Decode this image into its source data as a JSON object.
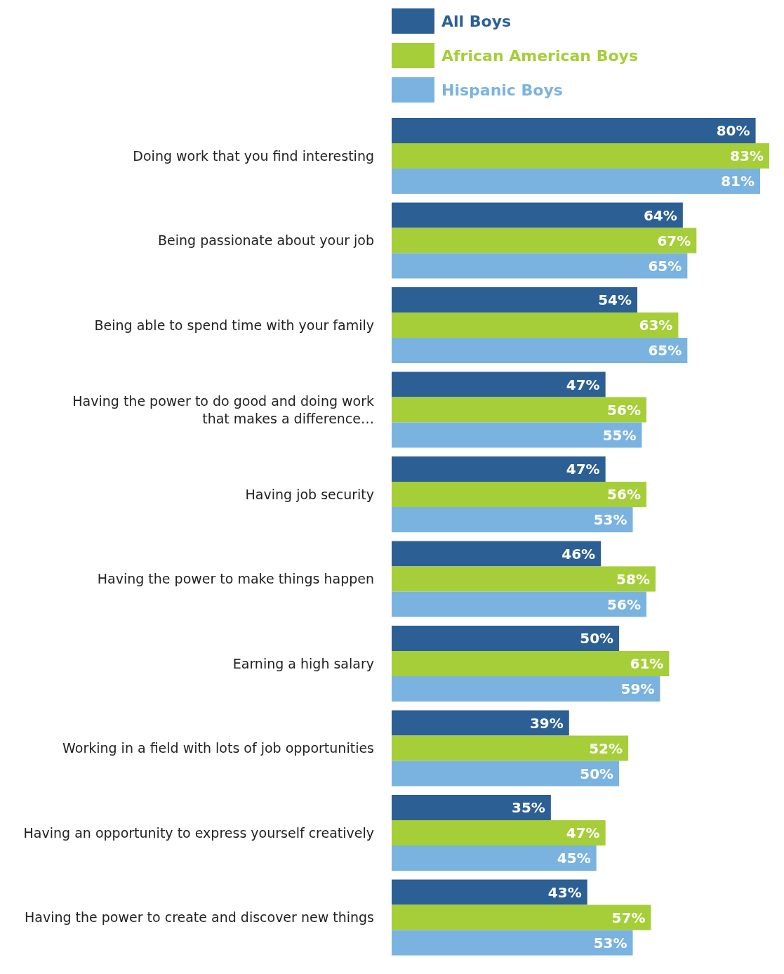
{
  "chart_data": {
    "type": "bar",
    "orientation": "horizontal",
    "legend": "top",
    "categories": [
      "Doing work that you find interesting",
      "Being passionate about your job",
      "Being able to spend time with your family",
      "Having the power to do good and doing work that makes a difference…",
      "Having job security",
      "Having the power to make things happen",
      "Earning a high salary",
      "Working in a field with lots of job opportunities",
      "Having an opportunity to express yourself creatively",
      "Having the power to create and discover new things"
    ],
    "series": [
      {
        "name": "All Boys",
        "color": "#2c5f94",
        "values": [
          80,
          64,
          54,
          47,
          47,
          46,
          50,
          39,
          35,
          43
        ],
        "value_labels": [
          "80%",
          "64%",
          "54%",
          "47%",
          "47%",
          "46%",
          "50%",
          "39%",
          "35%",
          "43%"
        ]
      },
      {
        "name": "African American Boys",
        "color": "#a6ce39",
        "values": [
          83,
          67,
          63,
          56,
          56,
          58,
          61,
          52,
          47,
          57
        ],
        "value_labels": [
          "83%",
          "67%",
          "63%",
          "56%",
          "56%",
          "58%",
          "61%",
          "52%",
          "47%",
          "57%"
        ]
      },
      {
        "name": "Hispanic Boys",
        "color": "#7ab3e0",
        "values": [
          81,
          65,
          65,
          55,
          53,
          56,
          59,
          50,
          45,
          53
        ],
        "value_labels": [
          "81%",
          "65%",
          "65%",
          "55%",
          "53%",
          "56%",
          "59%",
          "50%",
          "45%",
          "53%"
        ]
      }
    ]
  }
}
